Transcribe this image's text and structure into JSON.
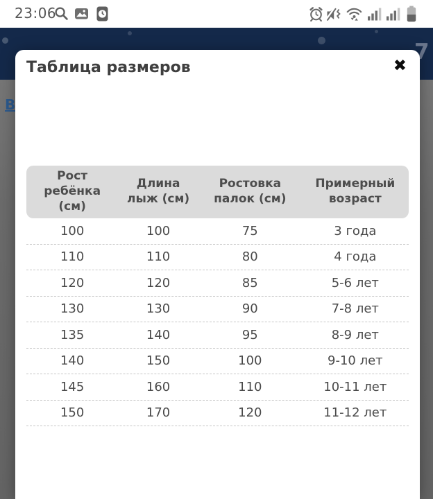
{
  "status_bar": {
    "time": "23:06",
    "icons_left": [
      "search",
      "gallery",
      "clock-app"
    ],
    "icons_right": [
      "alarm",
      "vibrate-mute",
      "wifi",
      "signal-sim1",
      "signal-sim2",
      "battery"
    ]
  },
  "background_page": {
    "header_color": "#14294a",
    "dim_overlay_color": "#6b6b6b",
    "visible_link_text": "В",
    "decor_glyph": "7"
  },
  "modal": {
    "title": "Таблица размеров",
    "close_label": "✖"
  },
  "size_table": {
    "headers": [
      "Рост\nребёнка\n(см)",
      "Длина\nлыж (см)",
      "Ростовка\nпалок (см)",
      "Примерный\nвозраст"
    ],
    "rows": [
      [
        "100",
        "100",
        "75",
        "3 года"
      ],
      [
        "110",
        "110",
        "80",
        "4 года"
      ],
      [
        "120",
        "120",
        "85",
        "5-6 лет"
      ],
      [
        "130",
        "130",
        "90",
        "7-8 лет"
      ],
      [
        "135",
        "140",
        "95",
        "8-9 лет"
      ],
      [
        "140",
        "150",
        "100",
        "9-10 лет"
      ],
      [
        "145",
        "160",
        "110",
        "10-11 лет"
      ],
      [
        "150",
        "170",
        "120",
        "11-12 лет"
      ]
    ]
  },
  "colors": {
    "table_header_bg": "#dbdbdb",
    "row_divider": "#c6c6c6",
    "title_text": "#3f3f3f",
    "cell_text": "#4a4a4a"
  }
}
